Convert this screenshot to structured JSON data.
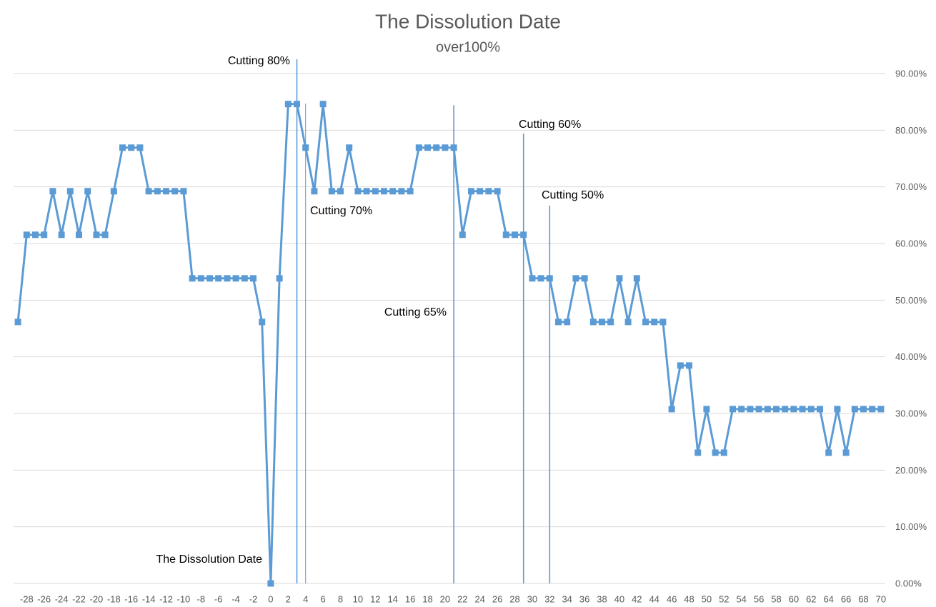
{
  "chart_data": {
    "type": "line",
    "title": "The Dissolution Date",
    "subtitle": "over100%",
    "x": [
      -29,
      -28,
      -27,
      -26,
      -25,
      -24,
      -23,
      -22,
      -21,
      -20,
      -19,
      -18,
      -17,
      -16,
      -15,
      -14,
      -13,
      -12,
      -11,
      -10,
      -9,
      -8,
      -7,
      -6,
      -5,
      -4,
      -3,
      -2,
      -1,
      0,
      1,
      2,
      3,
      4,
      5,
      6,
      7,
      8,
      9,
      10,
      11,
      12,
      13,
      14,
      15,
      16,
      17,
      18,
      19,
      20,
      21,
      22,
      23,
      24,
      25,
      26,
      27,
      28,
      29,
      30,
      31,
      32,
      33,
      34,
      35,
      36,
      37,
      38,
      39,
      40,
      41,
      42,
      43,
      44,
      45,
      46,
      47,
      48,
      49,
      50,
      51,
      52,
      53,
      54,
      55,
      56,
      57,
      58,
      59,
      60,
      61,
      62,
      63,
      64,
      65,
      66,
      67,
      68,
      69,
      70
    ],
    "series": [
      {
        "name": "over100%",
        "color": "#5b9bd5",
        "values": [
          46.15,
          61.54,
          61.54,
          61.54,
          69.23,
          61.54,
          69.23,
          61.54,
          69.23,
          61.54,
          61.54,
          69.23,
          76.92,
          76.92,
          76.92,
          69.23,
          69.23,
          69.23,
          69.23,
          69.23,
          53.85,
          53.85,
          53.85,
          53.85,
          53.85,
          53.85,
          53.85,
          53.85,
          46.15,
          0,
          53.85,
          84.62,
          84.62,
          76.92,
          69.23,
          84.62,
          69.23,
          69.23,
          76.92,
          69.23,
          69.23,
          69.23,
          69.23,
          69.23,
          69.23,
          69.23,
          76.92,
          76.92,
          76.92,
          76.92,
          76.92,
          61.54,
          69.23,
          69.23,
          69.23,
          69.23,
          61.54,
          61.54,
          61.54,
          53.85,
          53.85,
          53.85,
          46.15,
          46.15,
          53.85,
          53.85,
          46.15,
          46.15,
          46.15,
          53.85,
          46.15,
          53.85,
          46.15,
          46.15,
          46.15,
          30.77,
          38.46,
          38.46,
          23.08,
          30.77,
          23.08,
          23.08,
          30.77,
          30.77,
          30.77,
          30.77,
          30.77,
          30.77,
          30.77,
          30.77,
          30.77,
          30.77,
          30.77,
          23.08,
          30.77,
          23.08,
          30.77,
          30.77,
          30.77,
          30.77
        ]
      }
    ],
    "xlim": [
      -29.5,
      70.5
    ],
    "xticks": [
      -28,
      -26,
      -24,
      -22,
      -20,
      -18,
      -16,
      -14,
      -12,
      -10,
      -8,
      -6,
      -4,
      -2,
      0,
      2,
      4,
      6,
      8,
      10,
      12,
      14,
      16,
      18,
      20,
      22,
      24,
      26,
      28,
      30,
      32,
      34,
      36,
      38,
      40,
      42,
      44,
      46,
      48,
      50,
      52,
      54,
      56,
      58,
      60,
      62,
      64,
      66,
      68,
      70
    ],
    "ylim": [
      0,
      90
    ],
    "yticks": [
      {
        "value": 0,
        "label": "0.00%"
      },
      {
        "value": 10,
        "label": "10.00%"
      },
      {
        "value": 20,
        "label": "20.00%"
      },
      {
        "value": 30,
        "label": "30.00%"
      },
      {
        "value": 40,
        "label": "40.00%"
      },
      {
        "value": 50,
        "label": "50.00%"
      },
      {
        "value": 60,
        "label": "60.00%"
      },
      {
        "value": 70,
        "label": "70.00%"
      },
      {
        "value": 80,
        "label": "80.00%"
      },
      {
        "value": 90,
        "label": "90.00%"
      }
    ],
    "grid": true,
    "vlines": [
      {
        "x": 3,
        "top": 92.5
      },
      {
        "x": 4,
        "top": 84.7
      },
      {
        "x": 21,
        "top": 84.4
      },
      {
        "x": 29,
        "top": 79.4
      },
      {
        "x": 32,
        "top": 66.7
      }
    ],
    "annotations": [
      "Cutting 80%",
      "Cutting 70%",
      "Cutting 65%",
      "Cutting 60%",
      "Cutting 50%",
      "The Dissolution Date"
    ]
  }
}
